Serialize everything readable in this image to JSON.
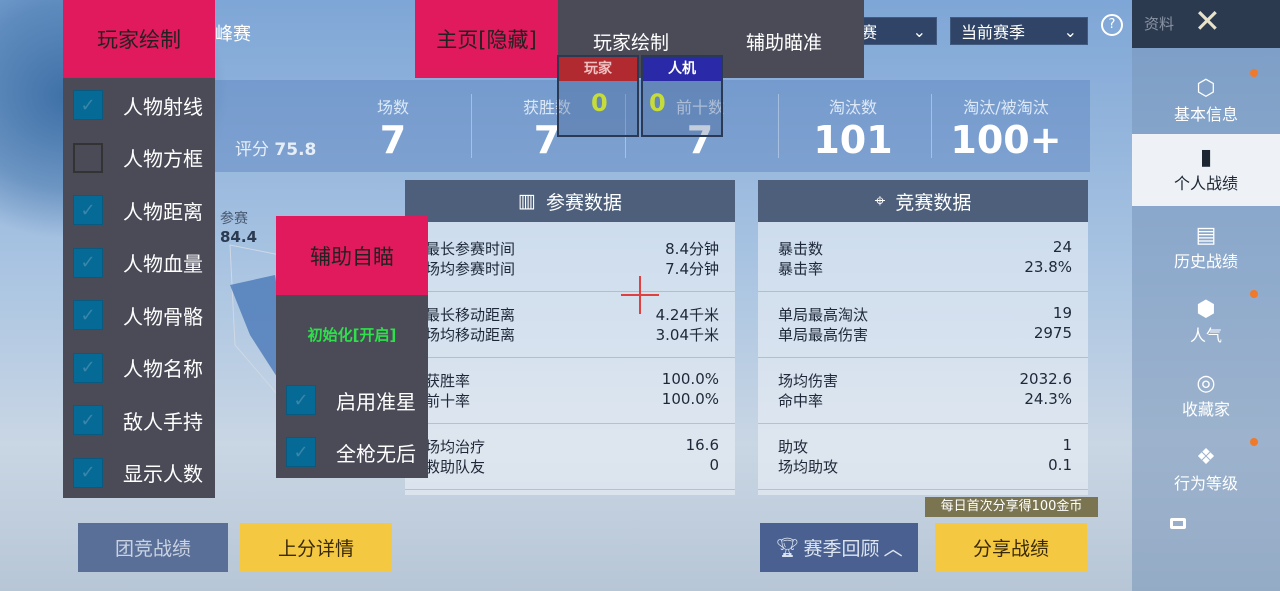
{
  "header": {
    "mode_partial": "峰赛",
    "dropdown_mode": "赛",
    "dropdown_season": "当前赛季",
    "help_icon": "question-circle-icon",
    "profile_label": "资料",
    "close_icon": "x-icon"
  },
  "sidebar": {
    "items": [
      {
        "label": "基本信息",
        "icon": "profile-icon",
        "dot": true
      },
      {
        "label": "个人战绩",
        "icon": "stats-doc-icon",
        "selected": true
      },
      {
        "label": "历史战绩",
        "icon": "history-doc-icon"
      },
      {
        "label": "人气",
        "icon": "popularity-icon",
        "dot": true
      },
      {
        "label": "收藏家",
        "icon": "collector-icon"
      },
      {
        "label": "行为等级",
        "icon": "behavior-icon",
        "dot": true
      }
    ],
    "more_icon": "menu-icon"
  },
  "stats": {
    "rating_label": "评分",
    "rating": "75.8",
    "columns": [
      {
        "label": "场数",
        "value": "7"
      },
      {
        "label": "获胜数",
        "value": "7"
      },
      {
        "label": "前十数",
        "value": "7"
      },
      {
        "label": "淘汰数",
        "value": "101"
      },
      {
        "label": "淘汰/被淘汰",
        "value": "100+"
      }
    ]
  },
  "radar": {
    "label": "参赛",
    "value": "84.4"
  },
  "participation": {
    "title": "参赛数据",
    "groups": [
      [
        [
          "最长参赛时间",
          "8.4分钟"
        ],
        [
          "场均参赛时间",
          "7.4分钟"
        ]
      ],
      [
        [
          "最长移动距离",
          "4.24千米"
        ],
        [
          "场均移动距离",
          "3.04千米"
        ]
      ],
      [
        [
          "获胜率",
          "100.0%"
        ],
        [
          "前十率",
          "100.0%"
        ]
      ],
      [
        [
          "场均治疗",
          "16.6"
        ],
        [
          "救助队友",
          "0"
        ]
      ]
    ]
  },
  "competition": {
    "title": "竞赛数据",
    "groups": [
      [
        [
          "暴击数",
          "24"
        ],
        [
          "暴击率",
          "23.8%"
        ]
      ],
      [
        [
          "单局最高淘汰",
          "19"
        ],
        [
          "单局最高伤害",
          "2975"
        ]
      ],
      [
        [
          "场均伤害",
          "2032.6"
        ],
        [
          "命中率",
          "24.3%"
        ]
      ],
      [
        [
          "助攻",
          "1"
        ],
        [
          "场均助攻",
          "0.1"
        ]
      ]
    ]
  },
  "bottom": {
    "team_record": "团竞战绩",
    "rank_details": "上分详情",
    "season_review": "赛季回顾",
    "share": "分享战绩",
    "share_tip": "每日首次分享得100金币"
  },
  "overlay": {
    "player_draw": {
      "title": "玩家绘制",
      "options": [
        {
          "label": "人物射线",
          "checked": true
        },
        {
          "label": "人物方框",
          "checked": false
        },
        {
          "label": "人物距离",
          "checked": true
        },
        {
          "label": "人物血量",
          "checked": true
        },
        {
          "label": "人物骨骼",
          "checked": true
        },
        {
          "label": "人物名称",
          "checked": true
        },
        {
          "label": "敌人手持",
          "checked": true
        },
        {
          "label": "显示人数",
          "checked": true
        }
      ]
    },
    "tabs": {
      "home": "主页[隐藏]",
      "player_draw": "玩家绘制",
      "aim_assist": "辅助瞄准"
    },
    "counters": {
      "player_label": "玩家",
      "player_count": "0",
      "bot_label": "人机",
      "bot_count": "0"
    },
    "auto_aim": {
      "title": "辅助自瞄",
      "status": "初始化[开启]",
      "options": [
        {
          "label": "启用准星",
          "checked": true
        },
        {
          "label": "全枪无后",
          "checked": true
        }
      ]
    },
    "colors": {
      "accent": "#e01a5c",
      "panel": "#4b4b58",
      "checkbox": "#066a96",
      "status": "#2ee04a",
      "player": "#b02a30",
      "bot": "#2a2aa8"
    }
  }
}
